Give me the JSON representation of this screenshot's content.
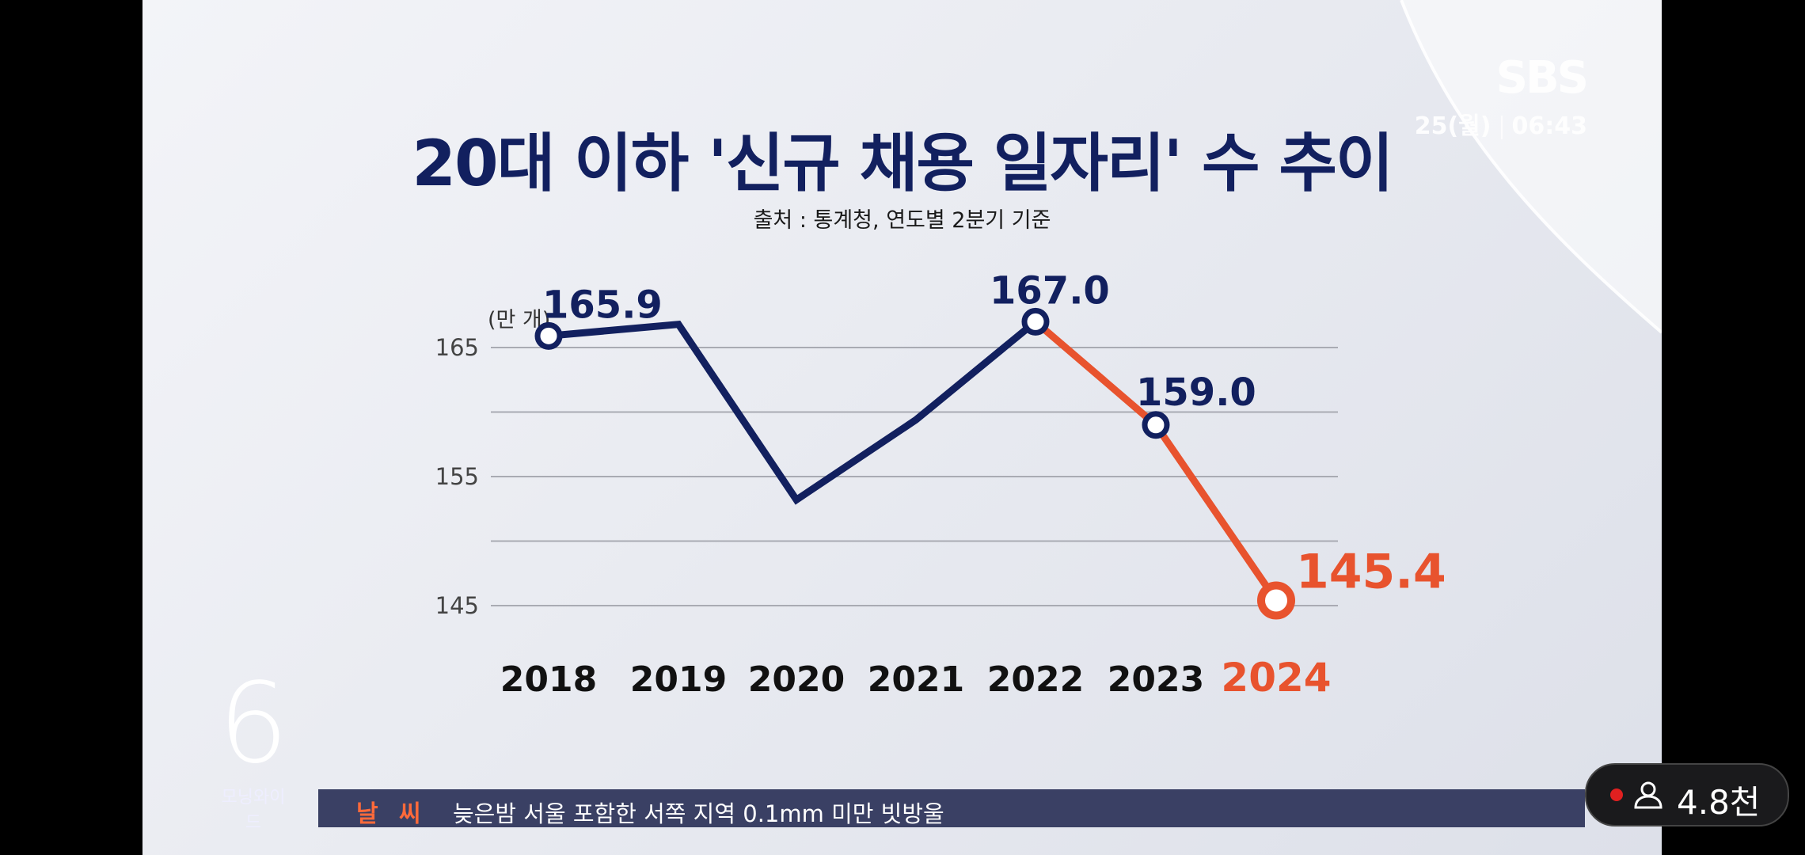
{
  "broadcaster": {
    "name": "SBS",
    "date": "25(월)",
    "time": "06:43"
  },
  "program": {
    "number": "6",
    "name": "모닝와이드"
  },
  "ticker": {
    "category": "날 씨",
    "text": "늦은밤 서울 포함한 서쪽 지역 0.1mm 미만 빗방울"
  },
  "viewer_badge": {
    "icon": "person-icon",
    "count": "4.8천"
  },
  "colors": {
    "navy": "#12205f",
    "highlight": "#e8532e",
    "ticker_bg": "#3a4064"
  },
  "chart_data": {
    "type": "line",
    "title": "20대 이하 '신규 채용 일자리' 수 추이",
    "subtitle": "출처 : 통계청, 연도별 2분기 기준",
    "unit": "(만 개)",
    "categories": [
      "2018",
      "2019",
      "2020",
      "2021",
      "2022",
      "2023",
      "2024"
    ],
    "values": [
      165.9,
      166.8,
      153.2,
      159.4,
      167.0,
      159.0,
      145.4
    ],
    "labels": {
      "0": "165.9",
      "4": "167.0",
      "5": "159.0",
      "6": "145.4"
    },
    "highlight_from_index": 4,
    "ylim": [
      141,
      171
    ],
    "yticks": [
      "165",
      "155",
      "145"
    ],
    "grid": true,
    "legend": "none"
  }
}
